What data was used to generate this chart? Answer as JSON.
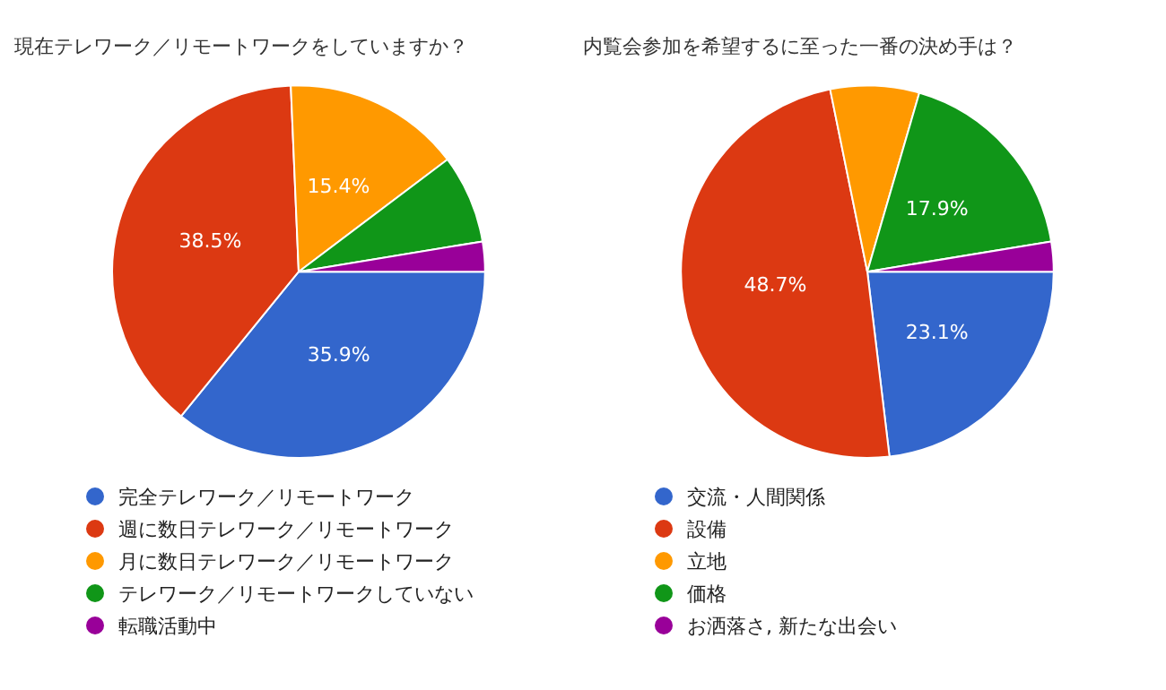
{
  "chart_data": [
    {
      "type": "pie",
      "title": "現在テレワーク／リモートワークをしていますか？",
      "categories": [
        "完全テレワーク／リモートワーク",
        "週に数日テレワーク／リモートワーク",
        "月に数日テレワーク／リモートワーク",
        "テレワーク／リモートワークしていない",
        "転職活動中"
      ],
      "values": [
        35.9,
        38.5,
        15.4,
        7.7,
        2.6
      ],
      "value_labels": [
        "35.9%",
        "38.5%",
        "15.4%",
        null,
        null
      ],
      "colors": [
        "#3366cc",
        "#dc3912",
        "#ff9900",
        "#109618",
        "#990099"
      ],
      "legend": "bottom"
    },
    {
      "type": "pie",
      "title": "内覧会参加を希望するに至った一番の決め手は？",
      "categories": [
        "交流・人間関係",
        "設備",
        "立地",
        "価格",
        "お洒落さ, 新たな出会い"
      ],
      "values": [
        23.1,
        48.7,
        7.7,
        17.9,
        2.6
      ],
      "value_labels": [
        "23.1%",
        "48.7%",
        null,
        "17.9%",
        null
      ],
      "colors": [
        "#3366cc",
        "#dc3912",
        "#ff9900",
        "#109618",
        "#990099"
      ],
      "legend": "bottom"
    }
  ]
}
